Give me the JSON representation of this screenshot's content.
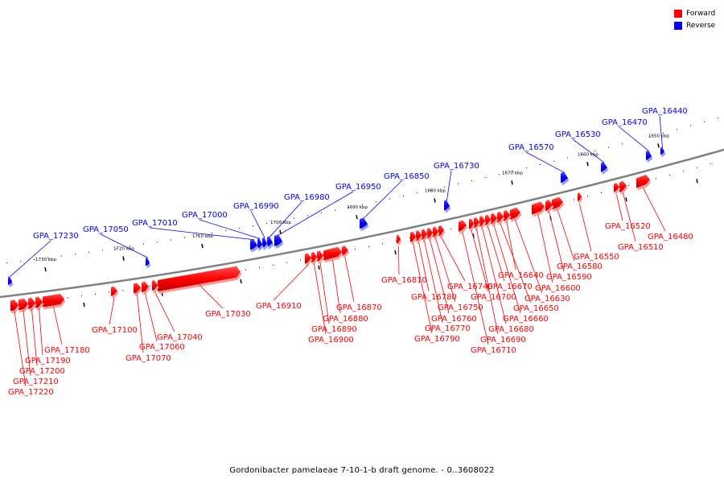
{
  "caption": "Gordonibacter pamelaeae 7-10-1-b draft genome. - 0..3608022",
  "legend": [
    {
      "label": "Forward",
      "color": "#ff0000"
    },
    {
      "label": "Reverse",
      "color": "#0000ff"
    }
  ],
  "colors": {
    "forward": "#ff0000",
    "reverse": "#0000ff",
    "backbone": "#808080"
  },
  "ticks": [
    "1650 kbp",
    "1660 kbp",
    "1670 kbp",
    "1680 kbp",
    "1690 kbp",
    "1700 kbp",
    "1710 kbp",
    "1720 kbp",
    "1730 kbp"
  ],
  "reverse_genes": [
    "GPA_16440",
    "GPA_16470",
    "GPA_16530",
    "GPA_16570",
    "GPA_16730",
    "GPA_16850",
    "GPA_16950",
    "GPA_16980",
    "GPA_16990",
    "GPA_17000",
    "GPA_17010",
    "GPA_17050",
    "GPA_17230"
  ],
  "forward_genes": [
    "GPA_16480",
    "GPA_16510",
    "GPA_16520",
    "GPA_16550",
    "GPA_16580",
    "GPA_16590",
    "GPA_16600",
    "GPA_16630",
    "GPA_16640",
    "GPA_16650",
    "GPA_16660",
    "GPA_16670",
    "GPA_16680",
    "GPA_16690",
    "GPA_16700",
    "GPA_16710",
    "GPA_16740",
    "GPA_16750",
    "GPA_16760",
    "GPA_16770",
    "GPA_16780",
    "GPA_16790",
    "GPA_16810",
    "GPA_16870",
    "GPA_16880",
    "GPA_16890",
    "GPA_16900",
    "GPA_16910",
    "GPA_17030",
    "GPA_17040",
    "GPA_17060",
    "GPA_17070",
    "GPA_17100",
    "GPA_17180",
    "GPA_17190",
    "GPA_17200",
    "GPA_17210",
    "GPA_17220"
  ]
}
